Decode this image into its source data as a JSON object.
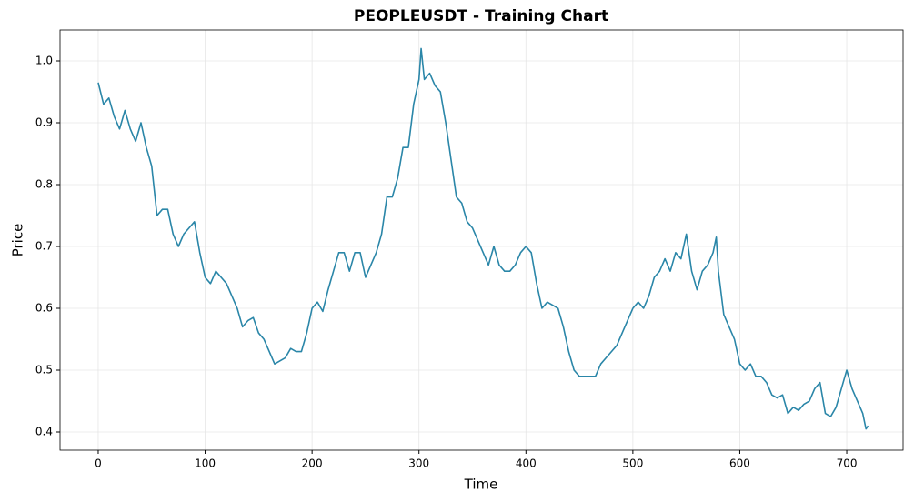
{
  "chart_data": {
    "type": "line",
    "title": "PEOPLEUSDT - Training Chart",
    "x_label": "Time",
    "y_label": "Price",
    "x": [
      0,
      5,
      10,
      15,
      20,
      25,
      30,
      35,
      40,
      45,
      50,
      55,
      60,
      65,
      70,
      75,
      80,
      85,
      90,
      95,
      100,
      105,
      110,
      115,
      120,
      125,
      130,
      135,
      140,
      145,
      150,
      155,
      160,
      165,
      170,
      175,
      180,
      185,
      190,
      195,
      200,
      205,
      210,
      215,
      220,
      225,
      230,
      235,
      240,
      245,
      250,
      255,
      260,
      265,
      270,
      275,
      280,
      285,
      290,
      295,
      300,
      302,
      305,
      310,
      315,
      320,
      325,
      330,
      335,
      340,
      345,
      350,
      355,
      360,
      365,
      370,
      375,
      380,
      385,
      390,
      395,
      400,
      405,
      410,
      415,
      420,
      425,
      430,
      435,
      440,
      445,
      450,
      455,
      460,
      465,
      470,
      475,
      480,
      485,
      490,
      495,
      500,
      505,
      510,
      515,
      520,
      525,
      530,
      535,
      540,
      545,
      550,
      555,
      560,
      565,
      570,
      575,
      578,
      580,
      585,
      590,
      595,
      600,
      605,
      610,
      615,
      620,
      625,
      630,
      635,
      640,
      645,
      650,
      655,
      660,
      665,
      670,
      675,
      680,
      685,
      690,
      695,
      700,
      705,
      710,
      715,
      718,
      720
    ],
    "series": [
      {
        "name": "PEOPLEUSDT",
        "color": "#2a86a8",
        "values": [
          0.965,
          0.93,
          0.94,
          0.91,
          0.89,
          0.92,
          0.89,
          0.87,
          0.9,
          0.86,
          0.83,
          0.75,
          0.76,
          0.76,
          0.72,
          0.7,
          0.72,
          0.73,
          0.74,
          0.69,
          0.65,
          0.64,
          0.66,
          0.65,
          0.64,
          0.62,
          0.6,
          0.57,
          0.58,
          0.585,
          0.56,
          0.55,
          0.53,
          0.51,
          0.515,
          0.52,
          0.535,
          0.53,
          0.53,
          0.56,
          0.6,
          0.61,
          0.595,
          0.63,
          0.66,
          0.69,
          0.69,
          0.66,
          0.69,
          0.69,
          0.65,
          0.67,
          0.69,
          0.72,
          0.78,
          0.78,
          0.81,
          0.86,
          0.86,
          0.93,
          0.97,
          1.02,
          0.97,
          0.98,
          0.96,
          0.95,
          0.9,
          0.84,
          0.78,
          0.77,
          0.74,
          0.73,
          0.71,
          0.69,
          0.67,
          0.7,
          0.67,
          0.66,
          0.66,
          0.67,
          0.69,
          0.7,
          0.69,
          0.64,
          0.6,
          0.61,
          0.605,
          0.6,
          0.57,
          0.53,
          0.5,
          0.49,
          0.49,
          0.49,
          0.49,
          0.51,
          0.52,
          0.53,
          0.54,
          0.56,
          0.58,
          0.6,
          0.61,
          0.6,
          0.62,
          0.65,
          0.66,
          0.68,
          0.66,
          0.69,
          0.68,
          0.72,
          0.66,
          0.63,
          0.66,
          0.67,
          0.69,
          0.715,
          0.66,
          0.59,
          0.57,
          0.55,
          0.51,
          0.5,
          0.51,
          0.49,
          0.49,
          0.48,
          0.46,
          0.455,
          0.46,
          0.43,
          0.44,
          0.435,
          0.445,
          0.45,
          0.47,
          0.48,
          0.43,
          0.425,
          0.44,
          0.47,
          0.5,
          0.47,
          0.45,
          0.43,
          0.405,
          0.41
        ]
      }
    ],
    "xlim": [
      -35.7,
      752.7
    ],
    "ylim": [
      0.3706,
      1.05
    ],
    "xticks": [
      0,
      100,
      200,
      300,
      400,
      500,
      600,
      700
    ],
    "yticks": [
      0.4,
      0.5,
      0.6,
      0.7,
      0.8,
      0.9,
      {
        "value": 1,
        "label": "1.0"
      }
    ],
    "grid": true
  }
}
